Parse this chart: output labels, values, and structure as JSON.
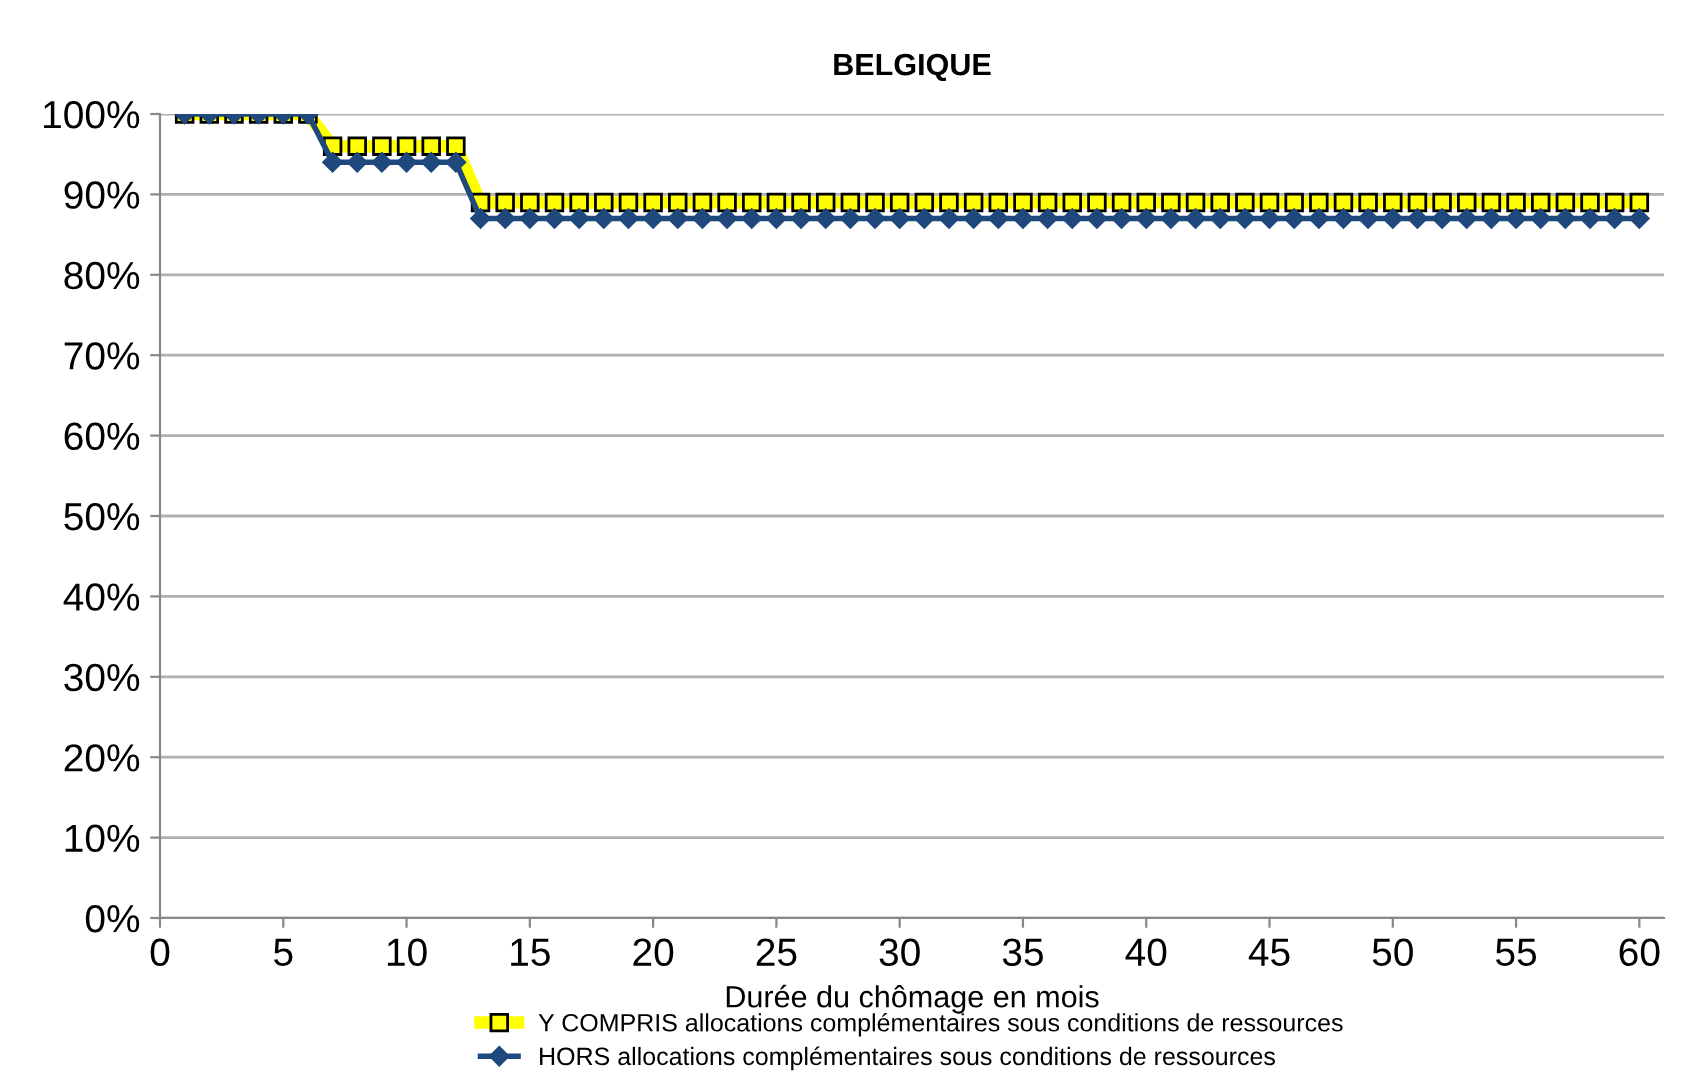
{
  "chart_data": {
    "type": "line",
    "title": "BELGIQUE",
    "xlabel": "Durée du chômage en mois",
    "x": [
      1,
      2,
      3,
      4,
      5,
      6,
      7,
      8,
      9,
      10,
      11,
      12,
      13,
      14,
      15,
      16,
      17,
      18,
      19,
      20,
      21,
      22,
      23,
      24,
      25,
      26,
      27,
      28,
      29,
      30,
      31,
      32,
      33,
      34,
      35,
      36,
      37,
      38,
      39,
      40,
      41,
      42,
      43,
      44,
      45,
      46,
      47,
      48,
      49,
      50,
      51,
      52,
      53,
      54,
      55,
      56,
      57,
      58,
      59,
      60
    ],
    "series": [
      {
        "name": "Y COMPRIS allocations complémentaires sous conditions de ressources",
        "color": "#ffff00",
        "marker": "square",
        "values": [
          100,
          100,
          100,
          100,
          100,
          100,
          96,
          96,
          96,
          96,
          96,
          96,
          89,
          89,
          89,
          89,
          89,
          89,
          89,
          89,
          89,
          89,
          89,
          89,
          89,
          89,
          89,
          89,
          89,
          89,
          89,
          89,
          89,
          89,
          89,
          89,
          89,
          89,
          89,
          89,
          89,
          89,
          89,
          89,
          89,
          89,
          89,
          89,
          89,
          89,
          89,
          89,
          89,
          89,
          89,
          89,
          89,
          89,
          89,
          89
        ]
      },
      {
        "name": "HORS allocations complémentaires sous conditions de ressources",
        "color": "#1f497d",
        "marker": "diamond",
        "values": [
          100,
          100,
          100,
          100,
          100,
          100,
          94,
          94,
          94,
          94,
          94,
          94,
          87,
          87,
          87,
          87,
          87,
          87,
          87,
          87,
          87,
          87,
          87,
          87,
          87,
          87,
          87,
          87,
          87,
          87,
          87,
          87,
          87,
          87,
          87,
          87,
          87,
          87,
          87,
          87,
          87,
          87,
          87,
          87,
          87,
          87,
          87,
          87,
          87,
          87,
          87,
          87,
          87,
          87,
          87,
          87,
          87,
          87,
          87,
          87
        ]
      }
    ],
    "xlim": [
      0,
      61
    ],
    "xticks": [
      0,
      5,
      10,
      15,
      20,
      25,
      30,
      35,
      40,
      45,
      50,
      55,
      60
    ],
    "ylim": [
      0,
      100
    ],
    "yticks": [
      {
        "value": 0,
        "label": "0%"
      },
      {
        "value": 10,
        "label": "10%"
      },
      {
        "value": 20,
        "label": "20%"
      },
      {
        "value": 30,
        "label": "30%"
      },
      {
        "value": 40,
        "label": "40%"
      },
      {
        "value": 50,
        "label": "50%"
      },
      {
        "value": 60,
        "label": "60%"
      },
      {
        "value": 70,
        "label": "70%"
      },
      {
        "value": 80,
        "label": "80%"
      },
      {
        "value": 90,
        "label": "90%"
      },
      {
        "value": 100,
        "label": "100%"
      }
    ],
    "grid": "y",
    "legend": "bottom"
  }
}
